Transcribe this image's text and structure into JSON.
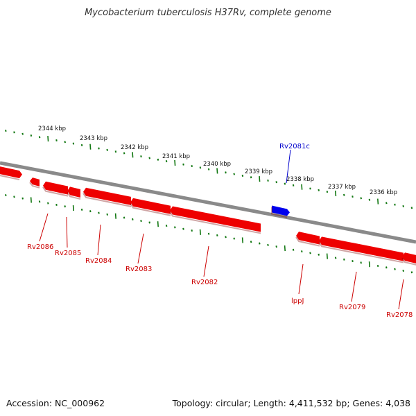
{
  "title": "Mycobacterium tuberculosis H37Rv, complete genome",
  "footer": {
    "accession": "Accession: NC_000962",
    "topology": "Topology: circular; Length: 4,411,532 bp; Genes: 4,038"
  },
  "colors": {
    "backbone": "#8a8a8a",
    "forward_gene": "#0000ee",
    "reverse_gene": "#ee0000",
    "scale_ticks": "#117711",
    "forward_label": "#0000cc",
    "reverse_label": "#cc0000"
  },
  "scale_labels": [
    "2344 kbp",
    "2343 kbp",
    "2342 kbp",
    "2341 kbp",
    "2340 kbp",
    "2339 kbp",
    "2338 kbp",
    "2337 kbp",
    "2336 kbp"
  ],
  "genes": [
    {
      "name": "Rv2081c",
      "strand": "forward"
    },
    {
      "name": "Rv2086",
      "strand": "reverse"
    },
    {
      "name": "Rv2085",
      "strand": "reverse"
    },
    {
      "name": "Rv2084",
      "strand": "reverse"
    },
    {
      "name": "Rv2083",
      "strand": "reverse"
    },
    {
      "name": "Rv2082",
      "strand": "reverse"
    },
    {
      "name": "lppJ",
      "strand": "reverse"
    },
    {
      "name": "Rv2079",
      "strand": "reverse"
    },
    {
      "name": "Rv2078",
      "strand": "reverse"
    }
  ]
}
